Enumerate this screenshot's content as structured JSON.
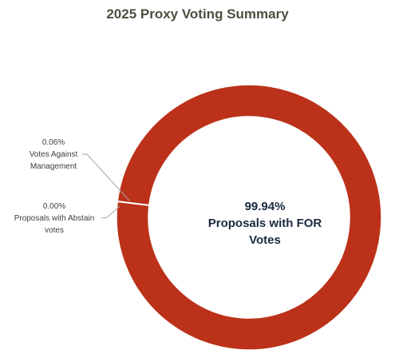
{
  "chart_data": {
    "type": "donut",
    "title": "2025 Proxy Voting Summary",
    "categories": [
      "Proposals with FOR Votes",
      "Votes Against Management",
      "Proposals with Abstain votes"
    ],
    "values": [
      99.94,
      0.06,
      0
    ],
    "value_labels": [
      "99.94%",
      "0.06%",
      "0.00%"
    ],
    "colors": [
      "#bb3119",
      "#bb3119",
      "#bb3119"
    ]
  }
}
